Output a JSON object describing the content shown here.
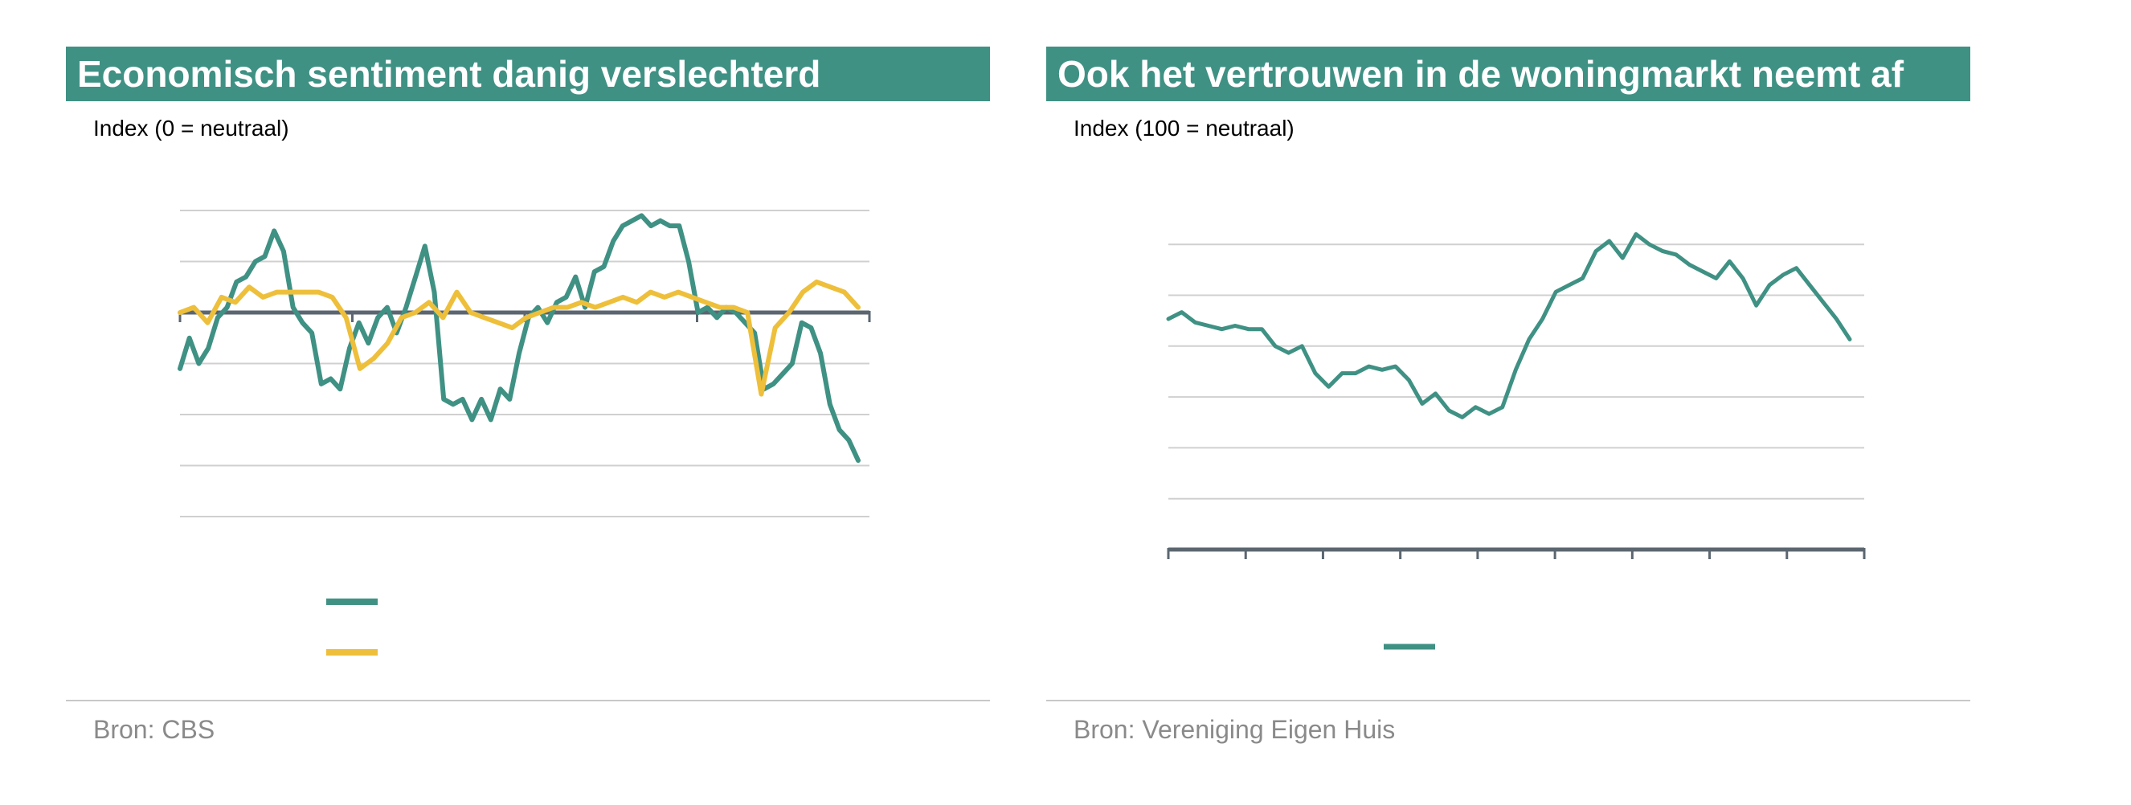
{
  "colors": {
    "teal": "#3f9184",
    "yellow": "#eebf3a",
    "axis": "#5b6670",
    "grid": "#d0d0d0"
  },
  "panels": [
    {
      "title": "Economisch sentiment danig verslechterd",
      "subtitle": "Index (0 = neutraal)",
      "source": "Bron: CBS"
    },
    {
      "title": "Ook het vertrouwen in de woningmarkt neemt af",
      "subtitle": "Index (100 = neutraal)",
      "source": "Bron: Vereniging Eigen Huis"
    }
  ],
  "chart_data": [
    {
      "type": "line",
      "title": "Economisch sentiment danig verslechterd",
      "ylabel": "Index (0 = neutraal)",
      "x_tick_count": 5,
      "ylim": [
        -40,
        20
      ],
      "grid": true,
      "legend_position": "bottom",
      "series": [
        {
          "color": "#3f9184",
          "values": [
            -11,
            -5,
            -10,
            -7,
            -1,
            1,
            6,
            7,
            10,
            11,
            16,
            12,
            1,
            -2,
            -4,
            -14,
            -13,
            -15,
            -7,
            -2,
            -6,
            -1,
            1,
            -4,
            1,
            7,
            13,
            4,
            -17,
            -18,
            -17,
            -21,
            -17,
            -21,
            -15,
            -17,
            -8,
            -1,
            1,
            -2,
            2,
            3,
            7,
            1,
            8,
            9,
            14,
            17,
            18,
            19,
            17,
            18,
            17,
            17,
            10,
            0,
            1,
            -1,
            1,
            0,
            -2,
            -4,
            -15,
            -14,
            -12,
            -10,
            -2,
            -3,
            -8,
            -18,
            -23,
            -25,
            -29
          ]
        },
        {
          "color": "#eebf3a",
          "values": [
            0,
            1,
            -2,
            3,
            2,
            5,
            3,
            4,
            4,
            4,
            4,
            3,
            -1,
            -11,
            -9,
            -6,
            -1,
            0,
            2,
            -1,
            4,
            0,
            -1,
            -2,
            -3,
            -1,
            0,
            1,
            1,
            2,
            1,
            2,
            3,
            2,
            4,
            3,
            4,
            3,
            2,
            1,
            1,
            0,
            -16,
            -3,
            0,
            4,
            6,
            5,
            4,
            1
          ]
        }
      ]
    },
    {
      "type": "line",
      "title": "Ook het vertrouwen in de woningmarkt neemt af",
      "ylabel": "Index (100 = neutraal)",
      "x_tick_count": 10,
      "ylim": [
        30,
        130
      ],
      "grid": true,
      "legend_position": "bottom",
      "series": [
        {
          "color": "#3f9184",
          "values": [
            98,
            100,
            97,
            96,
            95,
            96,
            95,
            95,
            90,
            88,
            90,
            82,
            78,
            82,
            82,
            84,
            83,
            84,
            80,
            73,
            76,
            71,
            69,
            72,
            70,
            72,
            83,
            92,
            98,
            106,
            108,
            110,
            118,
            121,
            116,
            123,
            120,
            118,
            117,
            114,
            112,
            110,
            115,
            110,
            102,
            108,
            111,
            113,
            108,
            103,
            98,
            92
          ]
        }
      ]
    }
  ]
}
